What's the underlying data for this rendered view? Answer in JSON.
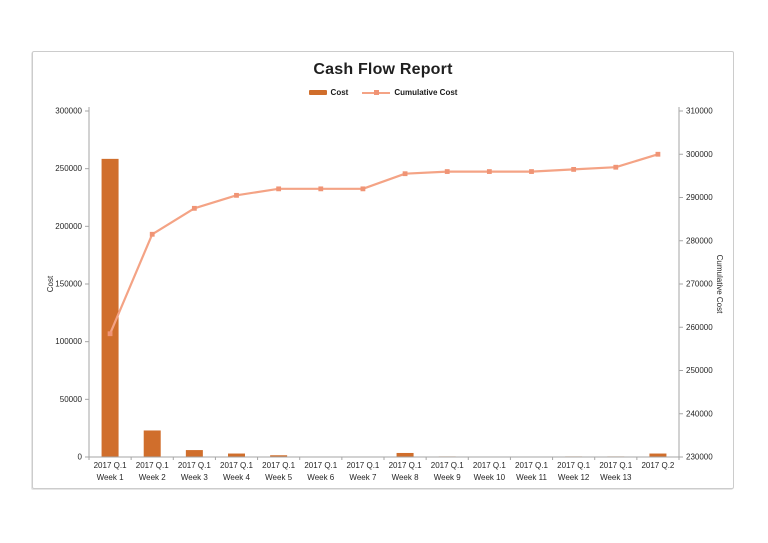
{
  "chart_data": {
    "type": "combo",
    "title": "Cash Flow Report",
    "legend_position": "top",
    "gridlines": false,
    "categories": [
      {
        "line1": "2017 Q.1",
        "line2": "Week 1"
      },
      {
        "line1": "2017 Q.1",
        "line2": "Week 2"
      },
      {
        "line1": "2017 Q.1",
        "line2": "Week 3"
      },
      {
        "line1": "2017 Q.1",
        "line2": "Week 4"
      },
      {
        "line1": "2017 Q.1",
        "line2": "Week 5"
      },
      {
        "line1": "2017 Q.1",
        "line2": "Week 6"
      },
      {
        "line1": "2017 Q.1",
        "line2": "Week 7"
      },
      {
        "line1": "2017 Q.1",
        "line2": "Week 8"
      },
      {
        "line1": "2017 Q.1",
        "line2": "Week 9"
      },
      {
        "line1": "2017 Q.1",
        "line2": "Week 10"
      },
      {
        "line1": "2017 Q.1",
        "line2": "Week 11"
      },
      {
        "line1": "2017 Q.1",
        "line2": "Week 12"
      },
      {
        "line1": "2017 Q.1",
        "line2": "Week 13"
      },
      {
        "line1": "2017 Q.2",
        "line2": ""
      }
    ],
    "series": [
      {
        "name": "Cost",
        "type": "bar",
        "axis": "left",
        "color": "#d06e2c",
        "values": [
          258500,
          23000,
          6000,
          3000,
          1500,
          0,
          0,
          3500,
          500,
          0,
          0,
          500,
          500,
          3000
        ]
      },
      {
        "name": "Cumulative Cost",
        "type": "line",
        "axis": "right",
        "color": "#f4a385",
        "marker_color": "#f09475",
        "values": [
          258500,
          281500,
          287500,
          290500,
          292000,
          292000,
          292000,
          295500,
          296000,
          296000,
          296000,
          296500,
          297000,
          300000
        ]
      }
    ],
    "left_axis": {
      "title": "Cost",
      "min": 0,
      "max": 300000,
      "tick_step": 50000,
      "tick_labels": [
        "0",
        "50000",
        "100000",
        "150000",
        "200000",
        "250000",
        "300000"
      ]
    },
    "right_axis": {
      "title": "Cumulative Cost",
      "min": 230000,
      "max": 310000,
      "tick_step": 10000,
      "tick_labels": [
        "230000",
        "240000",
        "250000",
        "260000",
        "270000",
        "280000",
        "290000",
        "300000",
        "310000"
      ]
    },
    "style": {
      "axis_line_color": "#a6a6a6",
      "tick_text_color": "#262626",
      "title_color": "#1f1f1f"
    }
  }
}
